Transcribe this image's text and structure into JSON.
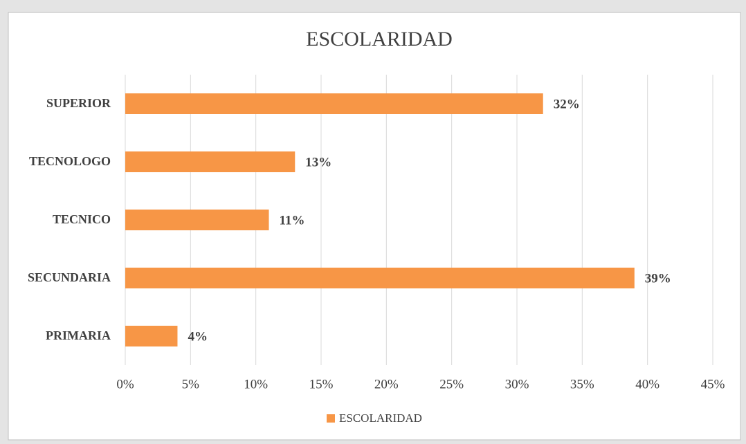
{
  "chart_data": {
    "type": "hbar",
    "title": "ESCOLARIDAD",
    "categories": [
      "SUPERIOR",
      "TECNOLOGO",
      "TECNICO",
      "SECUNDARIA",
      "PRIMARIA"
    ],
    "series": [
      {
        "name": "ESCOLARIDAD",
        "color": "#f79646",
        "values": [
          32,
          13,
          11,
          39,
          4
        ],
        "value_labels": [
          "32%",
          "13%",
          "11%",
          "39%",
          "4%"
        ]
      }
    ],
    "xlim": [
      0,
      45
    ],
    "xticks": [
      {
        "value": 0,
        "label": "0%"
      },
      {
        "value": 5,
        "label": "5%"
      },
      {
        "value": 10,
        "label": "10%"
      },
      {
        "value": 15,
        "label": "15%"
      },
      {
        "value": 20,
        "label": "20%"
      },
      {
        "value": 25,
        "label": "25%"
      },
      {
        "value": 30,
        "label": "30%"
      },
      {
        "value": 35,
        "label": "35%"
      },
      {
        "value": 40,
        "label": "40%"
      },
      {
        "value": 45,
        "label": "45%"
      }
    ],
    "grid": true,
    "legend": "bottom"
  }
}
